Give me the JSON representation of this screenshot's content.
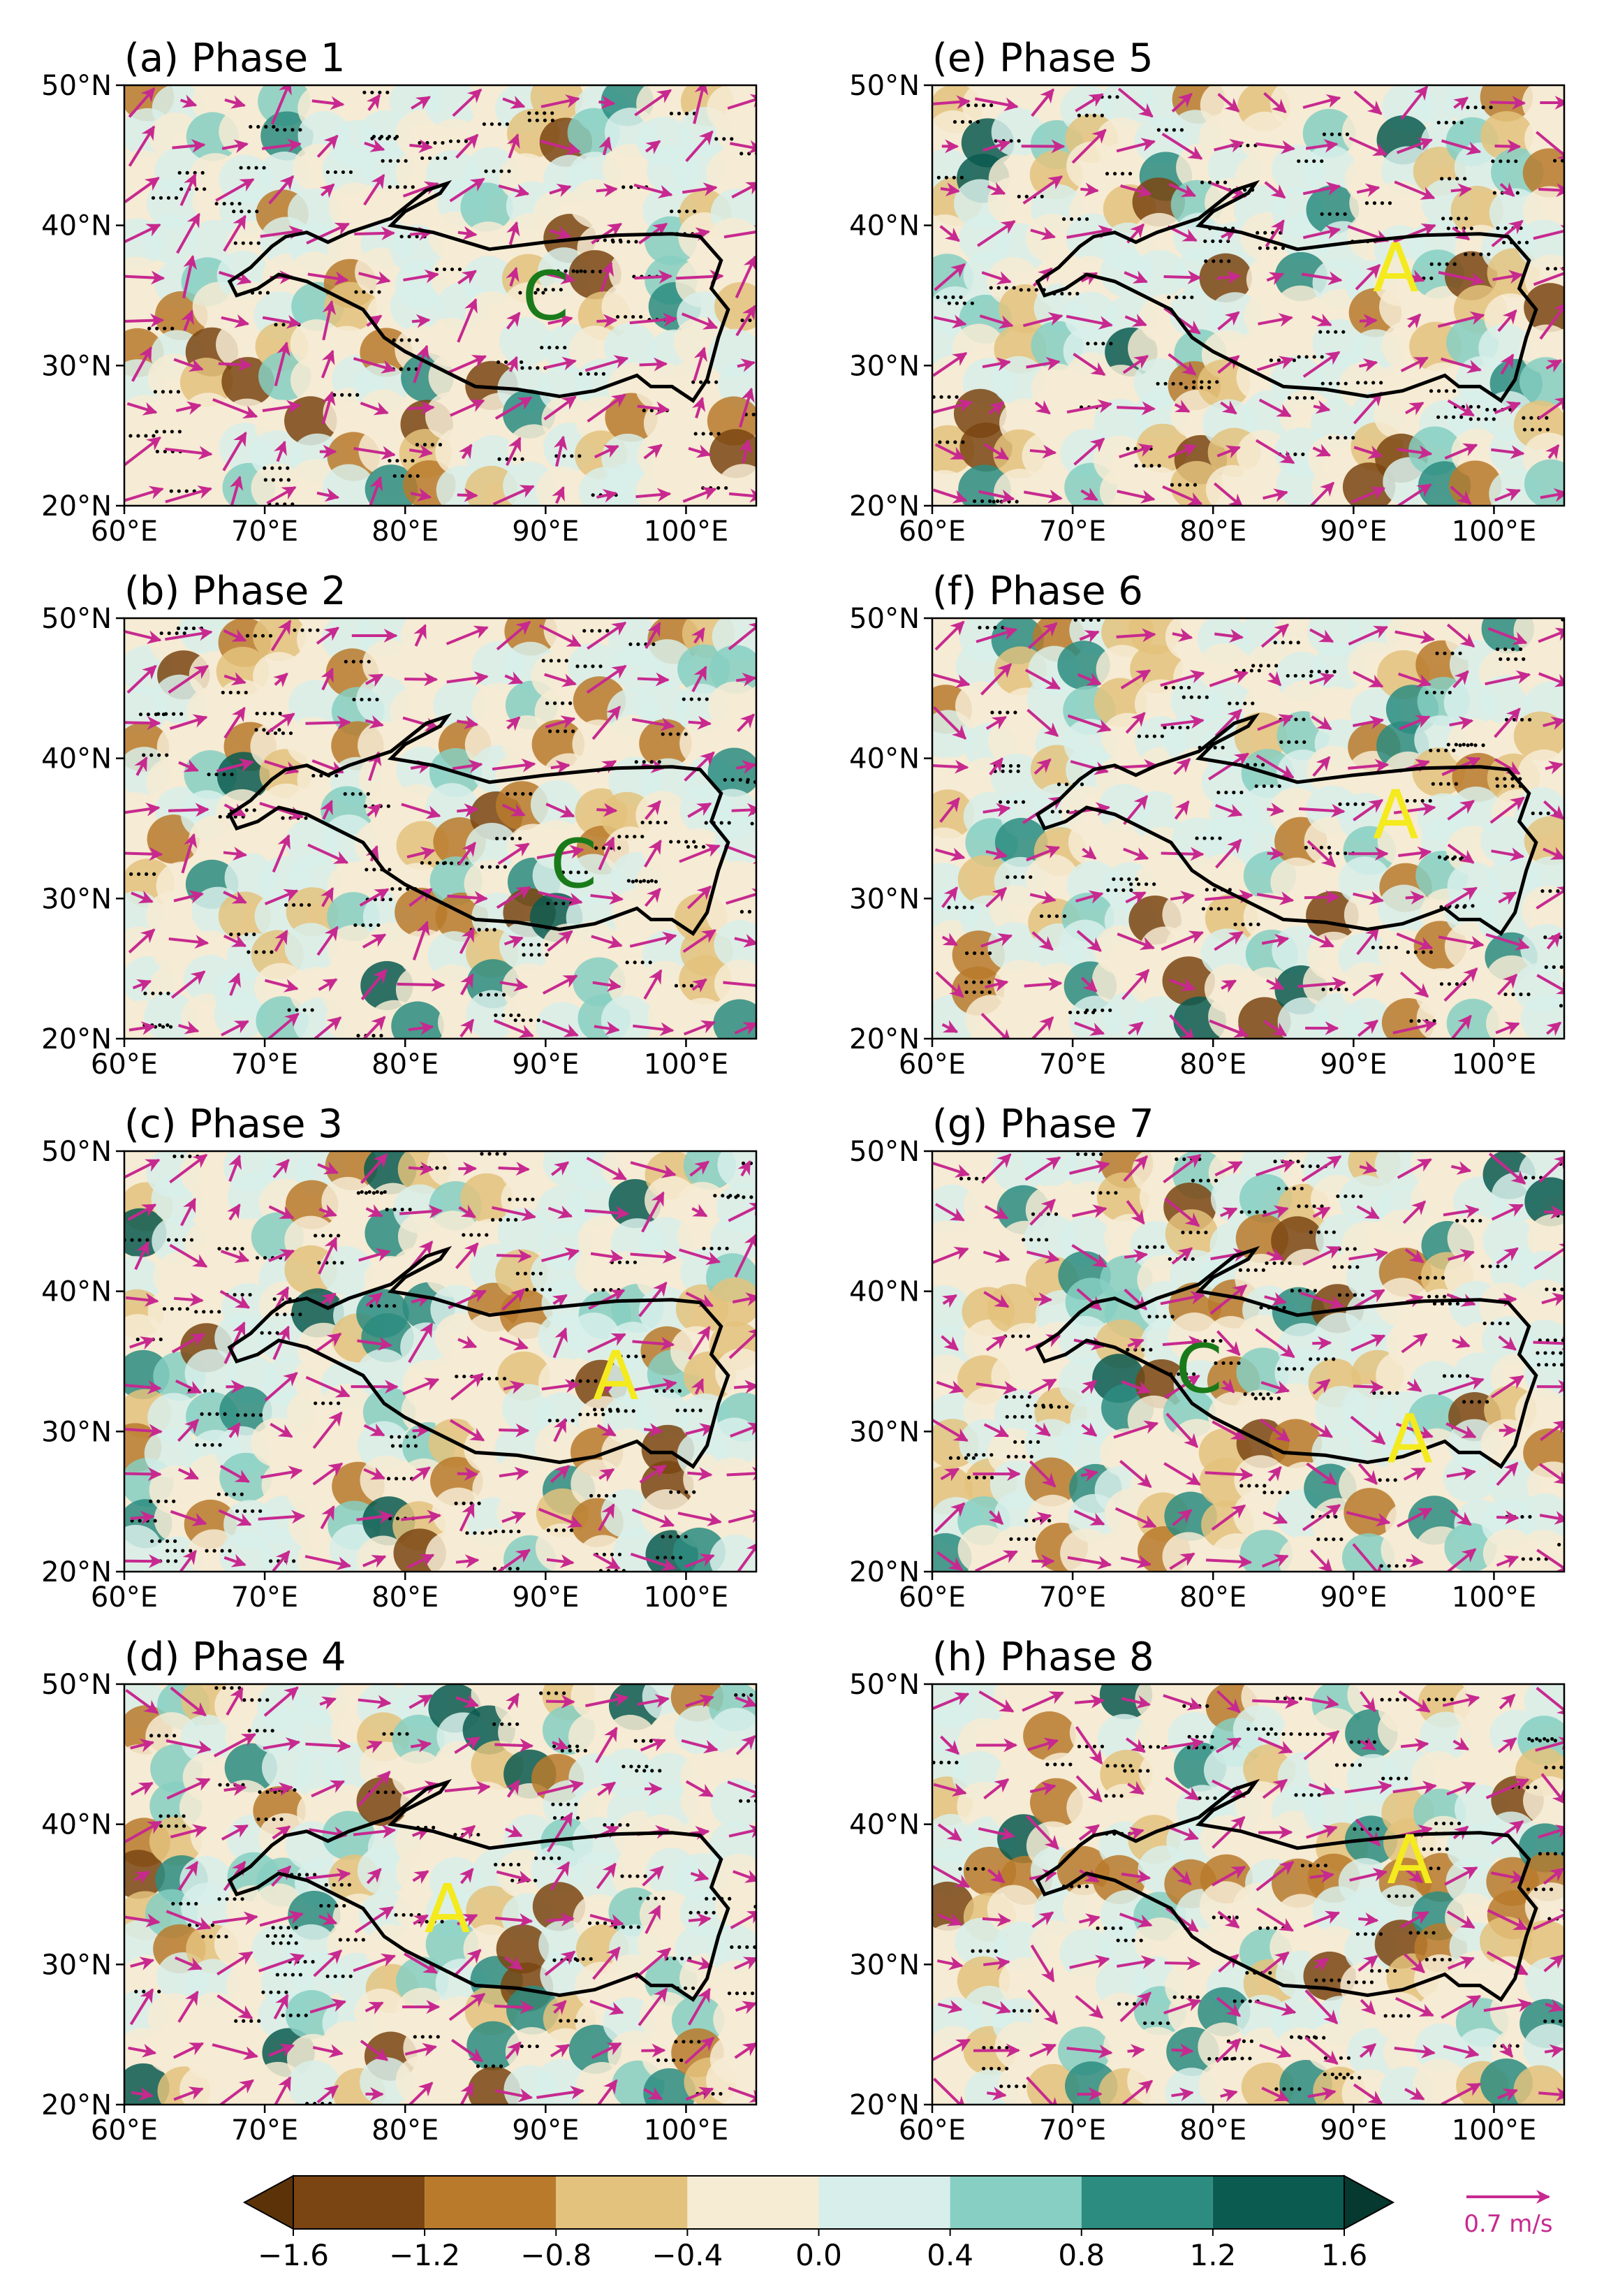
{
  "chart_data": {
    "type": "heatmap",
    "description_units": "shaded anomaly field with wind vectors over the Tibetan Plateau",
    "xlim": [
      60,
      105
    ],
    "ylim": [
      20,
      50
    ],
    "xticks": [
      "60°E",
      "70°E",
      "80°E",
      "90°E",
      "100°E"
    ],
    "yticks": [
      "50°N",
      "40°N",
      "30°N",
      "20°N"
    ],
    "xtick_values": [
      60,
      70,
      80,
      90,
      100
    ],
    "ytick_values": [
      50,
      40,
      30,
      20
    ],
    "panels": [
      {
        "title": "(a) Phase 1",
        "marker": {
          "text": "C",
          "lon": 90,
          "lat": 35,
          "color": "#1a7a1a"
        }
      },
      {
        "title": "(b) Phase 2",
        "marker": {
          "text": "C",
          "lon": 92,
          "lat": 32.5,
          "color": "#1a7a1a"
        }
      },
      {
        "title": "(c) Phase 3",
        "marker": {
          "text": "A",
          "lon": 95,
          "lat": 34,
          "color": "#f4ea1e"
        }
      },
      {
        "title": "(d) Phase 4",
        "marker": {
          "text": "A",
          "lon": 83,
          "lat": 34,
          "color": "#f4ea1e"
        }
      },
      {
        "title": "(e) Phase 5",
        "marker": {
          "text": "A",
          "lon": 93,
          "lat": 37,
          "color": "#f4ea1e"
        }
      },
      {
        "title": "(f) Phase 6",
        "marker": {
          "text": "A",
          "lon": 93,
          "lat": 36,
          "color": "#f4ea1e"
        }
      },
      {
        "title": "(g) Phase 7",
        "marker_list": [
          {
            "text": "C",
            "lon": 79,
            "lat": 34.5,
            "color": "#1a7a1a"
          },
          {
            "text": "A",
            "lon": 94,
            "lat": 29.5,
            "color": "#f4ea1e"
          }
        ]
      },
      {
        "title": "(h) Phase 8",
        "marker": {
          "text": "A",
          "lon": 94,
          "lat": 37.5,
          "color": "#f4ea1e"
        }
      }
    ],
    "colorbar": {
      "levels": [
        -1.6,
        -1.2,
        -0.8,
        -0.4,
        0.0,
        0.4,
        0.8,
        1.2,
        1.6
      ],
      "tick_labels": [
        "−1.6",
        "−1.2",
        "−0.8",
        "−0.4",
        "0.0",
        "0.4",
        "0.8",
        "1.2",
        "1.6"
      ],
      "colors": [
        "#5c3309",
        "#7a4512",
        "#b97a2c",
        "#e3c27d",
        "#f6ebd3",
        "#d8eeea",
        "#86cfc2",
        "#2c8c80",
        "#0b5b50",
        "#06392f"
      ],
      "extend": "both"
    },
    "reference_vector": {
      "label": "0.7 m/s",
      "color": "#c7298f"
    },
    "vector_color": "#c7298f",
    "contour_color": "#000000"
  }
}
